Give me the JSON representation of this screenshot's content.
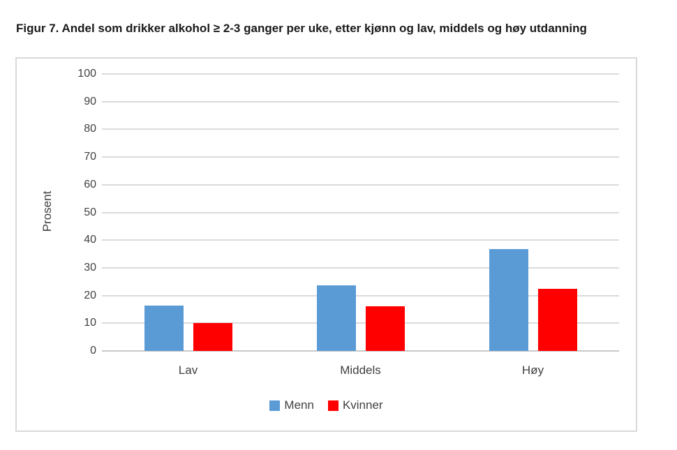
{
  "title": "Figur 7. Andel som drikker alkohol ≥ 2-3 ganger per uke, etter kjønn og lav, middels og høy utdanning",
  "chart_data": {
    "type": "bar",
    "categories": [
      "Lav",
      "Middels",
      "Høy"
    ],
    "series": [
      {
        "name": "Menn",
        "color": "#5B9BD5",
        "values": [
          16.4,
          23.7,
          36.7
        ]
      },
      {
        "name": "Kvinner",
        "color": "#FF0000",
        "values": [
          10.0,
          16.2,
          22.3
        ]
      }
    ],
    "title": "",
    "xlabel": "",
    "ylabel": "Prosent",
    "ylim": [
      0,
      100
    ],
    "yticks": [
      0,
      10,
      20,
      30,
      40,
      50,
      60,
      70,
      80,
      90,
      100
    ],
    "grid": true,
    "legend_position": "bottom"
  },
  "colors": {
    "gridline": "#DBDBDB",
    "axis_line": "#C9C9C9",
    "axis_text": "#404040",
    "chart_border": "#D9D9D9",
    "title_text": "#1A1A1A",
    "background": "#FFFFFF"
  }
}
